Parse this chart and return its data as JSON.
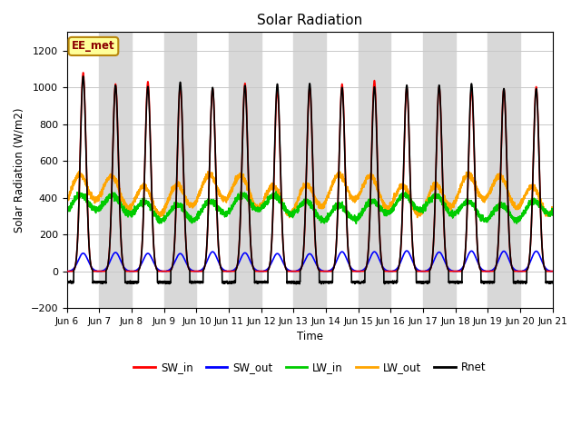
{
  "title": "Solar Radiation",
  "ylabel": "Solar Radiation (W/m2)",
  "xlabel": "Time",
  "ylim": [
    -200,
    1300
  ],
  "yticks": [
    -200,
    0,
    200,
    400,
    600,
    800,
    1000,
    1200
  ],
  "annotation_text": "EE_met",
  "annotation_color": "#8B0000",
  "annotation_bg": "#FFFF99",
  "annotation_border": "#B8860B",
  "series": {
    "SW_in": {
      "color": "red",
      "lw": 1.2
    },
    "SW_out": {
      "color": "blue",
      "lw": 1.2
    },
    "LW_in": {
      "color": "#00cc00",
      "lw": 1.2
    },
    "LW_out": {
      "color": "orange",
      "lw": 1.2
    },
    "Rnet": {
      "color": "black",
      "lw": 1.2
    }
  },
  "n_days": 15,
  "points_per_day": 288,
  "SW_in_peak": 1000,
  "SW_out_peak": 100,
  "LW_in_base": 340,
  "LW_in_amp": 40,
  "LW_out_base": 400,
  "LW_out_amp": 60,
  "Rnet_peak": 1000,
  "Rnet_night": -60,
  "background_color": "#ffffff",
  "grid_color": "#c8c8c8",
  "band_color": "#d8d8d8"
}
